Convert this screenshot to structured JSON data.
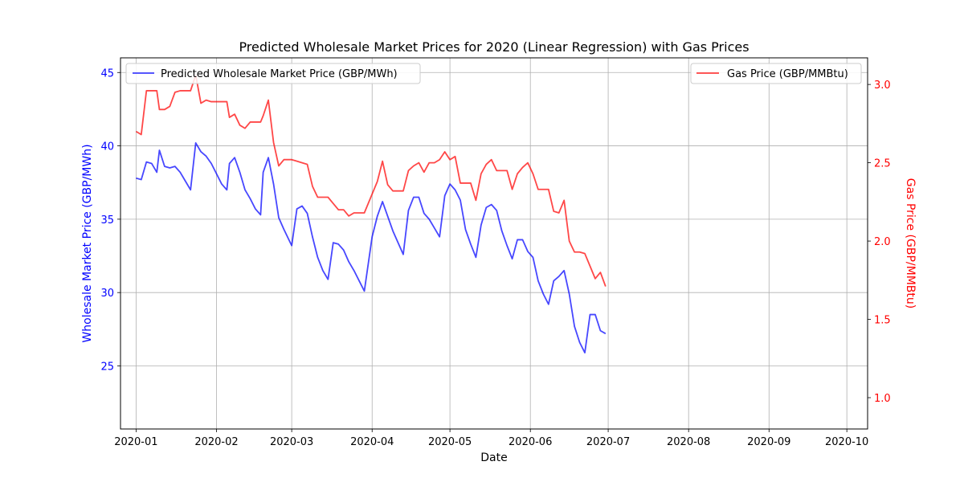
{
  "chart_data": {
    "type": "line",
    "title": "Predicted Wholesale Market Prices for 2020 (Linear Regression) with Gas Prices",
    "xlabel": "Date",
    "ylabel_left": "Wholesale Market Price (GBP/MWh)",
    "ylabel_right": "Gas Price (GBP/MMBtu)",
    "grid": true,
    "x_axis": {
      "type": "date",
      "range": [
        "2019-12-26",
        "2020-10-09"
      ],
      "ticks": [
        "2020-01-01",
        "2020-02-01",
        "2020-03-01",
        "2020-04-01",
        "2020-05-01",
        "2020-06-01",
        "2020-07-01",
        "2020-08-01",
        "2020-09-01",
        "2020-10-01"
      ],
      "tick_labels": [
        "2020-01",
        "2020-02",
        "2020-03",
        "2020-04",
        "2020-05",
        "2020-06",
        "2020-07",
        "2020-08",
        "2020-09",
        "2020-10"
      ]
    },
    "y_left": {
      "range": [
        20.7,
        46.0
      ],
      "ticks": [
        25,
        30,
        35,
        40,
        45
      ],
      "tick_labels": [
        "25",
        "30",
        "35",
        "40",
        "45"
      ],
      "color": "#0000ff"
    },
    "y_right": {
      "range": [
        0.8,
        3.17
      ],
      "ticks": [
        1.0,
        1.5,
        2.0,
        2.5,
        3.0
      ],
      "tick_labels": [
        "1.0",
        "1.5",
        "2.0",
        "2.5",
        "3.0"
      ],
      "color": "#ff0000"
    },
    "legend_left": {
      "placement": "upper left",
      "label": "Predicted Wholesale Market Price (GBP/MWh)"
    },
    "legend_right": {
      "placement": "upper right",
      "label": "Gas Price (GBP/MMBtu)"
    },
    "series": [
      {
        "name": "Predicted Wholesale Market Price (GBP/MWh)",
        "axis": "left",
        "color": "#0000ff",
        "points": [
          [
            "2020-01-01",
            37.8
          ],
          [
            "2020-01-03",
            37.7
          ],
          [
            "2020-01-05",
            38.9
          ],
          [
            "2020-01-07",
            38.8
          ],
          [
            "2020-01-09",
            38.2
          ],
          [
            "2020-01-10",
            39.7
          ],
          [
            "2020-01-12",
            38.6
          ],
          [
            "2020-01-14",
            38.5
          ],
          [
            "2020-01-16",
            38.6
          ],
          [
            "2020-01-18",
            38.2
          ],
          [
            "2020-01-20",
            37.6
          ],
          [
            "2020-01-22",
            37.0
          ],
          [
            "2020-01-24",
            40.2
          ],
          [
            "2020-01-26",
            39.6
          ],
          [
            "2020-01-28",
            39.3
          ],
          [
            "2020-01-30",
            38.8
          ],
          [
            "2020-02-01",
            38.1
          ],
          [
            "2020-02-03",
            37.4
          ],
          [
            "2020-02-05",
            37.0
          ],
          [
            "2020-02-06",
            38.8
          ],
          [
            "2020-02-08",
            39.2
          ],
          [
            "2020-02-10",
            38.2
          ],
          [
            "2020-02-12",
            37.0
          ],
          [
            "2020-02-14",
            36.4
          ],
          [
            "2020-02-16",
            35.7
          ],
          [
            "2020-02-18",
            35.3
          ],
          [
            "2020-02-19",
            38.2
          ],
          [
            "2020-02-21",
            39.2
          ],
          [
            "2020-02-23",
            37.4
          ],
          [
            "2020-02-25",
            35.1
          ],
          [
            "2020-02-27",
            34.3
          ],
          [
            "2020-03-01",
            33.2
          ],
          [
            "2020-03-03",
            35.7
          ],
          [
            "2020-03-05",
            35.9
          ],
          [
            "2020-03-07",
            35.4
          ],
          [
            "2020-03-09",
            33.8
          ],
          [
            "2020-03-11",
            32.4
          ],
          [
            "2020-03-13",
            31.5
          ],
          [
            "2020-03-15",
            30.9
          ],
          [
            "2020-03-17",
            33.4
          ],
          [
            "2020-03-19",
            33.3
          ],
          [
            "2020-03-21",
            32.9
          ],
          [
            "2020-03-23",
            32.1
          ],
          [
            "2020-03-25",
            31.5
          ],
          [
            "2020-03-27",
            30.8
          ],
          [
            "2020-03-29",
            30.1
          ],
          [
            "2020-04-01",
            33.8
          ],
          [
            "2020-04-03",
            35.2
          ],
          [
            "2020-04-05",
            36.2
          ],
          [
            "2020-04-07",
            35.2
          ],
          [
            "2020-04-09",
            34.2
          ],
          [
            "2020-04-11",
            33.4
          ],
          [
            "2020-04-13",
            32.6
          ],
          [
            "2020-04-15",
            35.6
          ],
          [
            "2020-04-17",
            36.5
          ],
          [
            "2020-04-19",
            36.5
          ],
          [
            "2020-04-21",
            35.4
          ],
          [
            "2020-04-23",
            35.0
          ],
          [
            "2020-04-25",
            34.4
          ],
          [
            "2020-04-27",
            33.8
          ],
          [
            "2020-04-29",
            36.6
          ],
          [
            "2020-05-01",
            37.4
          ],
          [
            "2020-05-03",
            37.0
          ],
          [
            "2020-05-05",
            36.3
          ],
          [
            "2020-05-07",
            34.3
          ],
          [
            "2020-05-09",
            33.3
          ],
          [
            "2020-05-11",
            32.4
          ],
          [
            "2020-05-13",
            34.6
          ],
          [
            "2020-05-15",
            35.8
          ],
          [
            "2020-05-17",
            36.0
          ],
          [
            "2020-05-19",
            35.6
          ],
          [
            "2020-05-21",
            34.2
          ],
          [
            "2020-05-23",
            33.2
          ],
          [
            "2020-05-25",
            32.3
          ],
          [
            "2020-05-27",
            33.6
          ],
          [
            "2020-05-29",
            33.6
          ],
          [
            "2020-05-31",
            32.8
          ],
          [
            "2020-06-02",
            32.4
          ],
          [
            "2020-06-04",
            30.8
          ],
          [
            "2020-06-06",
            29.9
          ],
          [
            "2020-06-08",
            29.2
          ],
          [
            "2020-06-10",
            30.8
          ],
          [
            "2020-06-12",
            31.1
          ],
          [
            "2020-06-14",
            31.5
          ],
          [
            "2020-06-16",
            29.9
          ],
          [
            "2020-06-18",
            27.7
          ],
          [
            "2020-06-20",
            26.6
          ],
          [
            "2020-06-22",
            25.9
          ],
          [
            "2020-06-24",
            28.5
          ],
          [
            "2020-06-26",
            28.5
          ],
          [
            "2020-06-28",
            27.4
          ],
          [
            "2020-06-30",
            27.2
          ]
        ]
      },
      {
        "name": "Gas Price (GBP/MMBtu)",
        "axis": "right",
        "color": "#ff0000",
        "points": [
          [
            "2020-01-01",
            2.7
          ],
          [
            "2020-01-03",
            2.68
          ],
          [
            "2020-01-05",
            2.96
          ],
          [
            "2020-01-07",
            2.96
          ],
          [
            "2020-01-09",
            2.96
          ],
          [
            "2020-01-10",
            2.84
          ],
          [
            "2020-01-12",
            2.84
          ],
          [
            "2020-01-14",
            2.86
          ],
          [
            "2020-01-16",
            2.95
          ],
          [
            "2020-01-18",
            2.96
          ],
          [
            "2020-01-20",
            2.96
          ],
          [
            "2020-01-22",
            2.96
          ],
          [
            "2020-01-24",
            3.06
          ],
          [
            "2020-01-26",
            2.88
          ],
          [
            "2020-01-28",
            2.9
          ],
          [
            "2020-01-30",
            2.89
          ],
          [
            "2020-02-01",
            2.89
          ],
          [
            "2020-02-03",
            2.89
          ],
          [
            "2020-02-05",
            2.89
          ],
          [
            "2020-02-06",
            2.79
          ],
          [
            "2020-02-08",
            2.81
          ],
          [
            "2020-02-10",
            2.74
          ],
          [
            "2020-02-12",
            2.72
          ],
          [
            "2020-02-14",
            2.76
          ],
          [
            "2020-02-16",
            2.76
          ],
          [
            "2020-02-18",
            2.76
          ],
          [
            "2020-02-19",
            2.8
          ],
          [
            "2020-02-21",
            2.9
          ],
          [
            "2020-02-23",
            2.63
          ],
          [
            "2020-02-25",
            2.48
          ],
          [
            "2020-02-27",
            2.52
          ],
          [
            "2020-03-01",
            2.52
          ],
          [
            "2020-03-03",
            2.51
          ],
          [
            "2020-03-05",
            2.5
          ],
          [
            "2020-03-07",
            2.49
          ],
          [
            "2020-03-09",
            2.35
          ],
          [
            "2020-03-11",
            2.28
          ],
          [
            "2020-03-13",
            2.28
          ],
          [
            "2020-03-15",
            2.28
          ],
          [
            "2020-03-17",
            2.24
          ],
          [
            "2020-03-19",
            2.2
          ],
          [
            "2020-03-21",
            2.2
          ],
          [
            "2020-03-23",
            2.16
          ],
          [
            "2020-03-25",
            2.18
          ],
          [
            "2020-03-27",
            2.18
          ],
          [
            "2020-03-29",
            2.18
          ],
          [
            "2020-04-01",
            2.3
          ],
          [
            "2020-04-03",
            2.38
          ],
          [
            "2020-04-05",
            2.51
          ],
          [
            "2020-04-07",
            2.36
          ],
          [
            "2020-04-09",
            2.32
          ],
          [
            "2020-04-11",
            2.32
          ],
          [
            "2020-04-13",
            2.32
          ],
          [
            "2020-04-15",
            2.45
          ],
          [
            "2020-04-17",
            2.48
          ],
          [
            "2020-04-19",
            2.5
          ],
          [
            "2020-04-21",
            2.44
          ],
          [
            "2020-04-23",
            2.5
          ],
          [
            "2020-04-25",
            2.5
          ],
          [
            "2020-04-27",
            2.52
          ],
          [
            "2020-04-29",
            2.57
          ],
          [
            "2020-05-01",
            2.52
          ],
          [
            "2020-05-03",
            2.54
          ],
          [
            "2020-05-05",
            2.37
          ],
          [
            "2020-05-07",
            2.37
          ],
          [
            "2020-05-09",
            2.37
          ],
          [
            "2020-05-11",
            2.26
          ],
          [
            "2020-05-13",
            2.43
          ],
          [
            "2020-05-15",
            2.49
          ],
          [
            "2020-05-17",
            2.52
          ],
          [
            "2020-05-19",
            2.45
          ],
          [
            "2020-05-21",
            2.45
          ],
          [
            "2020-05-23",
            2.45
          ],
          [
            "2020-05-25",
            2.33
          ],
          [
            "2020-05-27",
            2.43
          ],
          [
            "2020-05-29",
            2.47
          ],
          [
            "2020-05-31",
            2.5
          ],
          [
            "2020-06-02",
            2.43
          ],
          [
            "2020-06-04",
            2.33
          ],
          [
            "2020-06-06",
            2.33
          ],
          [
            "2020-06-08",
            2.33
          ],
          [
            "2020-06-10",
            2.19
          ],
          [
            "2020-06-12",
            2.18
          ],
          [
            "2020-06-14",
            2.26
          ],
          [
            "2020-06-16",
            2.0
          ],
          [
            "2020-06-18",
            1.93
          ],
          [
            "2020-06-20",
            1.93
          ],
          [
            "2020-06-22",
            1.92
          ],
          [
            "2020-06-24",
            1.84
          ],
          [
            "2020-06-26",
            1.76
          ],
          [
            "2020-06-28",
            1.8
          ],
          [
            "2020-06-30",
            1.71
          ]
        ]
      }
    ]
  }
}
